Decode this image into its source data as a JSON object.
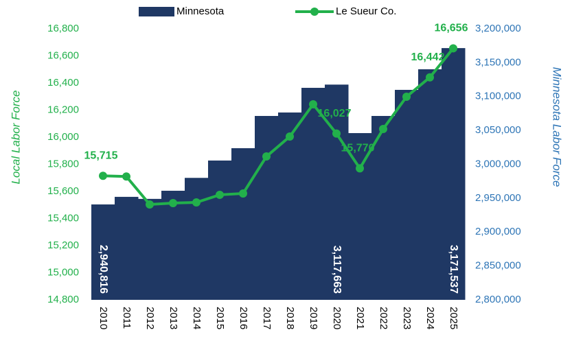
{
  "chart_data": {
    "type": "bar_line",
    "categories": [
      "2010",
      "2011",
      "2012",
      "2013",
      "2014",
      "2015",
      "2016",
      "2017",
      "2018",
      "2019",
      "2020",
      "2021",
      "2022",
      "2023",
      "2024",
      "2025"
    ],
    "series": [
      {
        "name": "Minnesota",
        "type": "bar",
        "axis": "y2",
        "color": "#1f3864",
        "values": [
          2940816,
          2952000,
          2949000,
          2961000,
          2980000,
          3005600,
          3023800,
          3071400,
          3076500,
          3112900,
          3117663,
          3046100,
          3071400,
          3109900,
          3140300,
          3171537
        ],
        "value_labels": [
          "2,940,816",
          null,
          null,
          null,
          null,
          null,
          null,
          null,
          null,
          null,
          "3,117,663",
          null,
          null,
          null,
          null,
          "3,171,537"
        ]
      },
      {
        "name": "Le Sueur Co.",
        "type": "line",
        "axis": "y",
        "color": "#22b04b",
        "values": [
          15715,
          15710,
          15504,
          15514,
          15519,
          15575,
          15585,
          15858,
          16005,
          16243,
          16027,
          15770,
          16061,
          16299,
          16442,
          16656
        ],
        "value_labels": [
          "15,715",
          null,
          null,
          null,
          null,
          null,
          null,
          null,
          null,
          null,
          "16,027",
          "15,770",
          null,
          null,
          "16,442",
          "16,656"
        ]
      }
    ],
    "ylabel": "Local Labor Force",
    "y2label": "Minnesota Labor Force",
    "ylim": [
      14800,
      16800
    ],
    "yticks": [
      {
        "value": 14800,
        "label": "14,800"
      },
      {
        "value": 15000,
        "label": "15,000"
      },
      {
        "value": 15200,
        "label": "15,200"
      },
      {
        "value": 15400,
        "label": "15,400"
      },
      {
        "value": 15600,
        "label": "15,600"
      },
      {
        "value": 15800,
        "label": "15,800"
      },
      {
        "value": 16000,
        "label": "16,000"
      },
      {
        "value": 16200,
        "label": "16,200"
      },
      {
        "value": 16400,
        "label": "16,400"
      },
      {
        "value": 16600,
        "label": "16,600"
      },
      {
        "value": 16800,
        "label": "16,800"
      }
    ],
    "y2lim": [
      2800000,
      3200000
    ],
    "y2ticks": [
      {
        "value": 2800000,
        "label": "2,800,000"
      },
      {
        "value": 2850000,
        "label": "2,850,000"
      },
      {
        "value": 2900000,
        "label": "2,900,000"
      },
      {
        "value": 2950000,
        "label": "2,950,000"
      },
      {
        "value": 3000000,
        "label": "3,000,000"
      },
      {
        "value": 3050000,
        "label": "3,050,000"
      },
      {
        "value": 3100000,
        "label": "3,100,000"
      },
      {
        "value": 3150000,
        "label": "3,150,000"
      },
      {
        "value": 3200000,
        "label": "3,200,000"
      }
    ],
    "legend": "top"
  }
}
